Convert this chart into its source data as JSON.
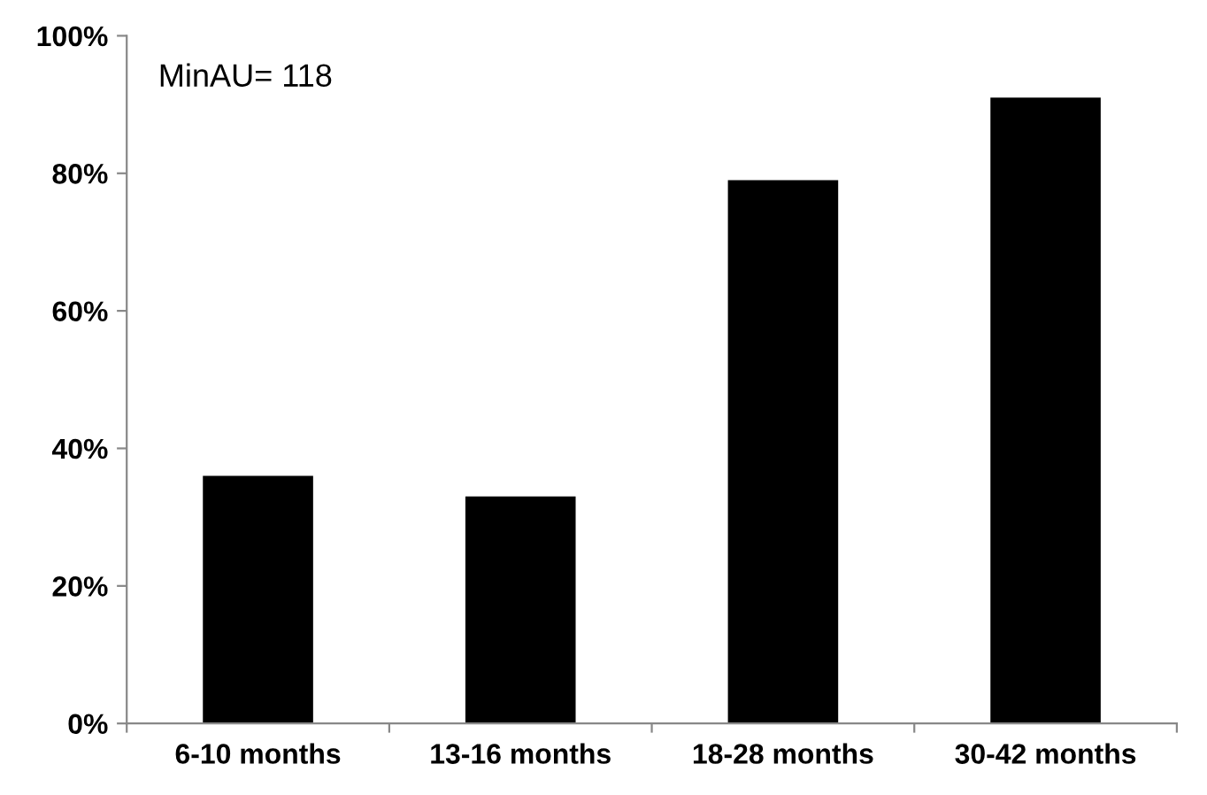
{
  "chart_data": {
    "type": "bar",
    "categories": [
      "6-10 months",
      "13-16 months",
      "18-28 months",
      "30-42 months"
    ],
    "values": [
      36,
      33,
      79,
      91
    ],
    "color": "#000000",
    "ylim": [
      0,
      100
    ],
    "yticks": [
      {
        "value": 0,
        "label": "0%"
      },
      {
        "value": 20,
        "label": "20%"
      },
      {
        "value": 40,
        "label": "40%"
      },
      {
        "value": 60,
        "label": "60%"
      },
      {
        "value": 80,
        "label": "80%"
      },
      {
        "value": 100,
        "label": "100%"
      }
    ],
    "annotations": [
      "MinAU= 118"
    ],
    "grid": false,
    "legend": false
  }
}
